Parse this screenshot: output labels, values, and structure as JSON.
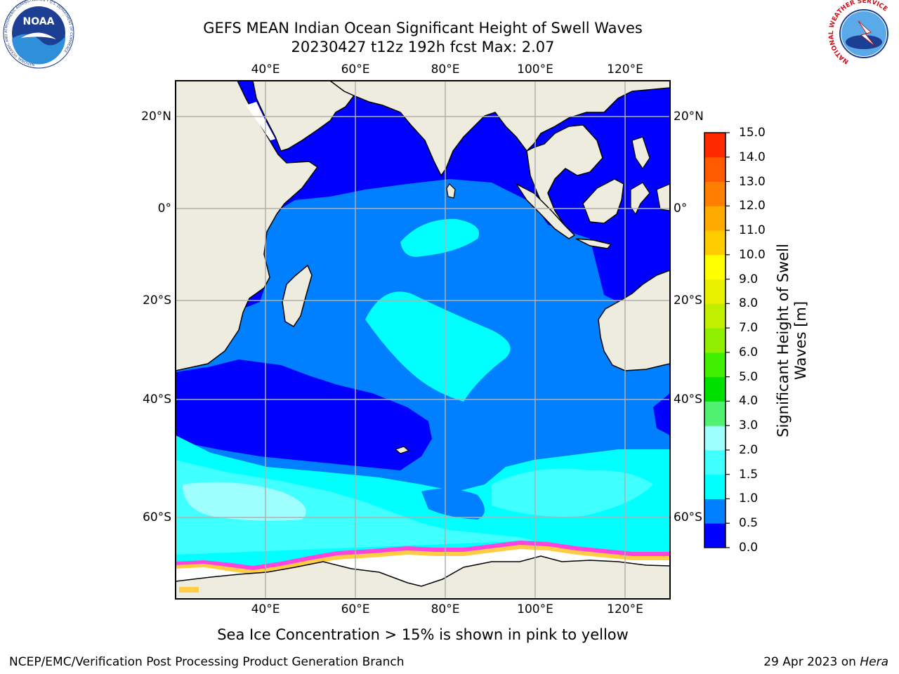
{
  "title": {
    "line1": "GEFS MEAN Indian Ocean Significant Height of Swell Waves",
    "line2": "20230427 t12z 192h fcst   Max: 2.07"
  },
  "map": {
    "lon_labels": [
      "40°E",
      "60°E",
      "80°E",
      "100°E",
      "120°E"
    ],
    "lat_labels": [
      "20°N",
      "0°",
      "20°S",
      "40°S",
      "60°S"
    ]
  },
  "colorbar": {
    "title_line1": "Significant Height of Swell",
    "title_line2": "Waves [m]",
    "ticks": [
      "0.0",
      "0.5",
      "1.0",
      "1.5",
      "2.0",
      "3.0",
      "4.0",
      "5.0",
      "6.0",
      "7.0",
      "8.0",
      "9.0",
      "10.0",
      "11.0",
      "12.0",
      "13.0",
      "14.0",
      "15.0"
    ],
    "colors": [
      "#0000ff",
      "#007fff",
      "#00ffff",
      "#40ffff",
      "#9fffff",
      "#50f070",
      "#00e000",
      "#40f000",
      "#90ee00",
      "#c0f000",
      "#e8f000",
      "#ffff00",
      "#ffcc00",
      "#ffaa00",
      "#ff8000",
      "#ff5a00",
      "#ff2a00",
      "#ff0000"
    ]
  },
  "footer": {
    "note": "Sea Ice Concentration > 15% is shown in pink to yellow",
    "credit_left": "NCEP/EMC/Verification Post Processing Product Generation Branch",
    "credit_date": "29 Apr 2023 on ",
    "credit_host": "Hera"
  },
  "logos": {
    "noaa_text": "NOAA",
    "noaa_ring_top": "NATIONAL OCEANIC AND ATMOSPHERIC ADMINISTRATION",
    "noaa_ring_bottom": "U.S. DEPARTMENT OF COMMERCE",
    "nws_ring": "NATIONAL WEATHER SERVICE"
  },
  "palette": {
    "land": "#eeecde",
    "sea_ice": "#ffffff",
    "ice_edge_pink": "#ff44dd",
    "ice_edge_yellow": "#ffcc44"
  }
}
